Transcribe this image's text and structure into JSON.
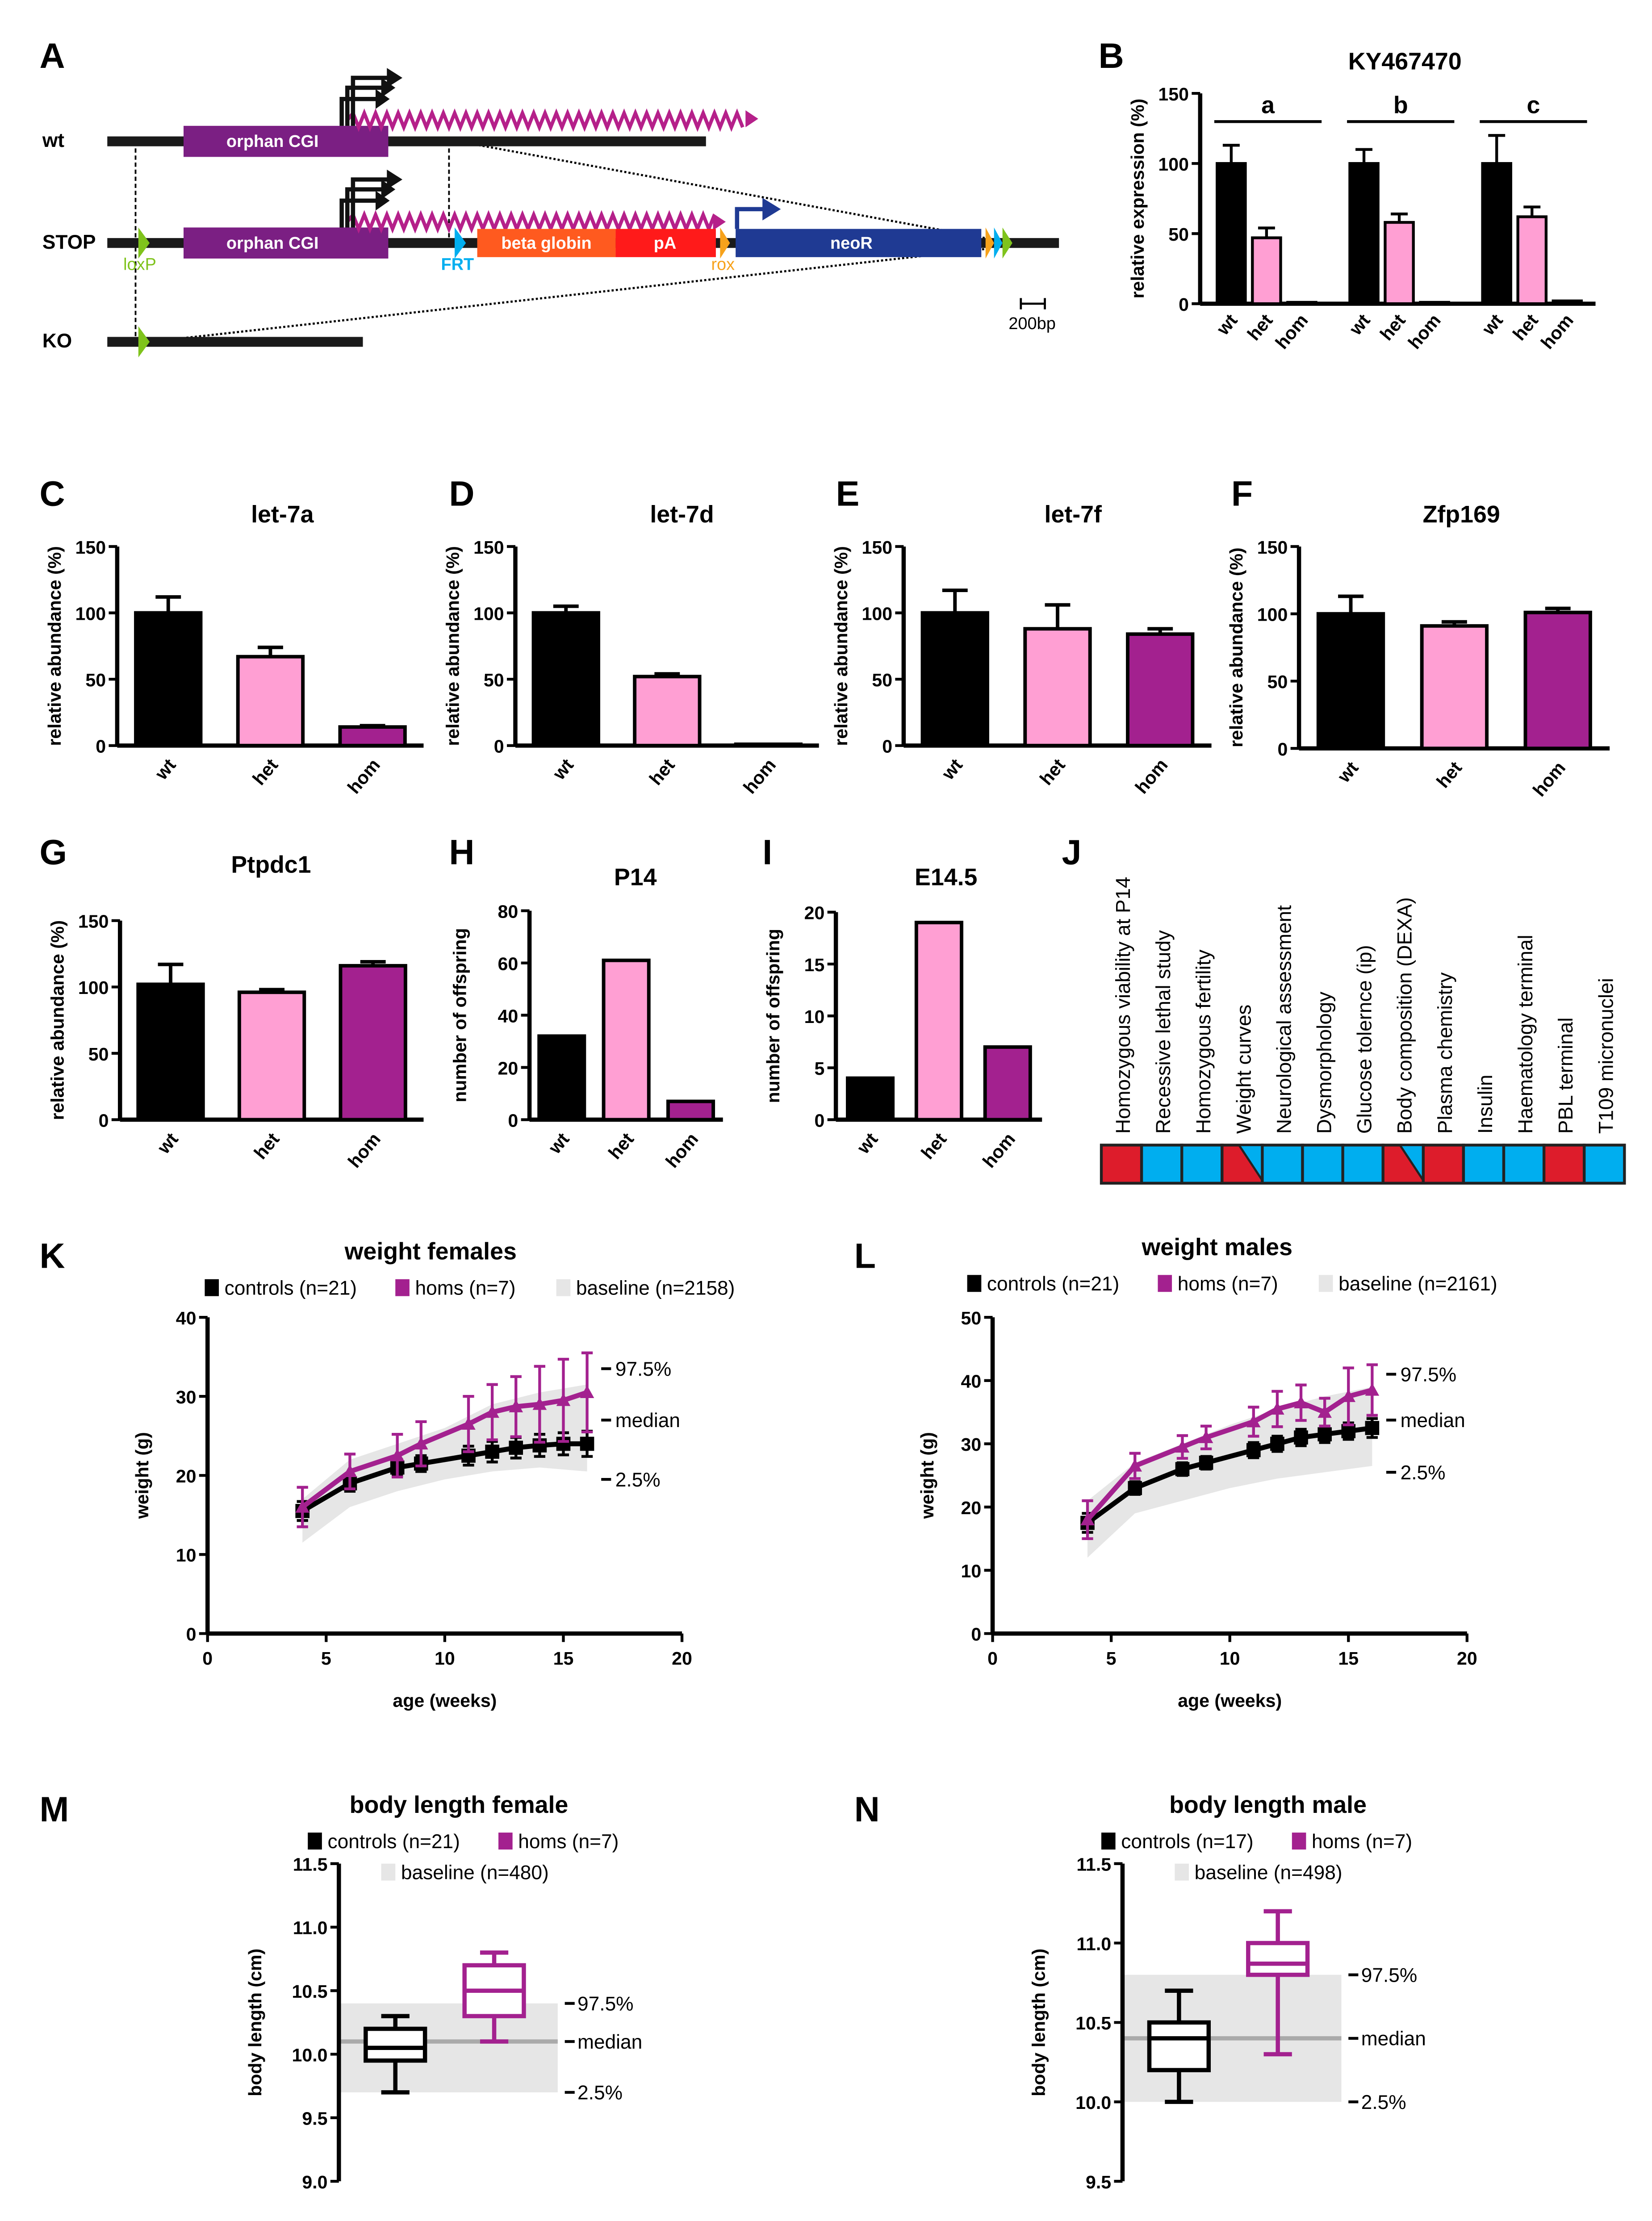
{
  "panel_a": {
    "panel": "A",
    "rows": {
      "wt": "wt",
      "stop": "STOP",
      "ko": "KO"
    },
    "elements": {
      "cgi": "orphan CGI",
      "beta_globin": "beta globin",
      "pa": "pA",
      "neor": "neoR",
      "loxp": "loxP",
      "frt": "FRT",
      "rox": "rox"
    },
    "scale": "200bp",
    "colors": {
      "cgi": "#7b1f83",
      "beta_globin": "#ff5a1f",
      "pa": "#ff1a1a",
      "neor": "#1f3a93",
      "loxp": "#7fc31c",
      "frt": "#00aeef",
      "rox": "#f7a21b",
      "transcript": "#b5208a"
    }
  },
  "colors": {
    "wt": "#000000",
    "het": "#ff9fd3",
    "hom": "#a3218f",
    "baseline": "#e6e6e6",
    "sig": "#dd1c2b",
    "nonsig": "#00aeef"
  },
  "chart_data": [
    {
      "panel": "B",
      "type": "bar",
      "title": "KY467470",
      "ylabel": "relative expression (%)",
      "ylim": [
        0,
        150
      ],
      "yticks": [
        "0",
        "50",
        "100",
        "150"
      ],
      "categories": [
        "wt",
        "het",
        "hom"
      ],
      "groups": [
        {
          "name": "a",
          "values": [
            100,
            47,
            1
          ],
          "errors": [
            13,
            7,
            0
          ]
        },
        {
          "name": "b",
          "values": [
            100,
            58,
            1
          ],
          "errors": [
            10,
            6,
            0
          ]
        },
        {
          "name": "c",
          "values": [
            100,
            62,
            2
          ],
          "errors": [
            20,
            7,
            0
          ]
        }
      ]
    },
    {
      "panel": "C",
      "type": "bar",
      "title": "let-7a",
      "ylabel": "relative abundance (%)",
      "ylim": [
        0,
        150
      ],
      "yticks": [
        "0",
        "50",
        "100",
        "150"
      ],
      "categories": [
        "wt",
        "het",
        "hom"
      ],
      "values": [
        100,
        67,
        14
      ],
      "errors": [
        12,
        7,
        1
      ]
    },
    {
      "panel": "D",
      "type": "bar",
      "title": "let-7d",
      "ylabel": "relative abundance (%)",
      "ylim": [
        0,
        150
      ],
      "yticks": [
        "0",
        "50",
        "100",
        "150"
      ],
      "categories": [
        "wt",
        "het",
        "hom"
      ],
      "values": [
        100,
        52,
        1
      ],
      "errors": [
        5,
        2,
        0
      ]
    },
    {
      "panel": "E",
      "type": "bar",
      "title": "let-7f",
      "ylabel": "relative abundance (%)",
      "ylim": [
        0,
        150
      ],
      "yticks": [
        "0",
        "50",
        "100",
        "150"
      ],
      "categories": [
        "wt",
        "het",
        "hom"
      ],
      "values": [
        100,
        88,
        84
      ],
      "errors": [
        17,
        18,
        4
      ]
    },
    {
      "panel": "F",
      "type": "bar",
      "title": "Zfp169",
      "ylabel": "relative abundance (%)",
      "ylim": [
        0,
        150
      ],
      "yticks": [
        "0",
        "50",
        "100",
        "150"
      ],
      "categories": [
        "wt",
        "het",
        "hom"
      ],
      "values": [
        100,
        91,
        101
      ],
      "errors": [
        13,
        3,
        3
      ]
    },
    {
      "panel": "G",
      "type": "bar",
      "title": "Ptpdc1",
      "ylabel": "relative abundance (%)",
      "ylim": [
        0,
        150
      ],
      "yticks": [
        "0",
        "50",
        "100",
        "150"
      ],
      "categories": [
        "wt",
        "het",
        "hom"
      ],
      "values": [
        102,
        96,
        116
      ],
      "errors": [
        15,
        2,
        3
      ]
    },
    {
      "panel": "H",
      "type": "bar",
      "title": "P14",
      "ylabel": "number of offspring",
      "ylim": [
        0,
        80
      ],
      "yticks": [
        "0",
        "20",
        "40",
        "60",
        "80"
      ],
      "categories": [
        "wt",
        "het",
        "hom"
      ],
      "values": [
        32,
        61,
        7
      ],
      "errors": [
        0,
        0,
        0
      ]
    },
    {
      "panel": "I",
      "type": "bar",
      "title": "E14.5",
      "ylabel": "number of offspring",
      "ylim": [
        0,
        20
      ],
      "yticks": [
        "0",
        "5",
        "10",
        "15",
        "20"
      ],
      "categories": [
        "wt",
        "het",
        "hom"
      ],
      "values": [
        4,
        19,
        7
      ],
      "errors": [
        0,
        0,
        0
      ]
    },
    {
      "panel": "J",
      "type": "table",
      "tests": [
        {
          "name": "Homozygous viability at P14",
          "status": "sig"
        },
        {
          "name": "Recessive lethal study",
          "status": "nonsig"
        },
        {
          "name": "Homozygous fertility",
          "status": "nonsig"
        },
        {
          "name": "Weight curves",
          "status": "split"
        },
        {
          "name": "Neurological assessment",
          "status": "nonsig"
        },
        {
          "name": "Dysmorphology",
          "status": "nonsig"
        },
        {
          "name": "Glucose tolernce (ip)",
          "status": "nonsig"
        },
        {
          "name": "Body composition (DEXA)",
          "status": "split"
        },
        {
          "name": "Plasma chemistry",
          "status": "sig"
        },
        {
          "name": "Insulin",
          "status": "nonsig"
        },
        {
          "name": "Haematology terminal",
          "status": "nonsig"
        },
        {
          "name": "PBL terminal",
          "status": "sig"
        },
        {
          "name": "T109 micronuclei",
          "status": "nonsig"
        }
      ]
    },
    {
      "panel": "K",
      "type": "line",
      "title": "weight females",
      "xlabel": "age (weeks)",
      "ylabel": "weight (g)",
      "xlim": [
        0,
        20
      ],
      "ylim": [
        0,
        40
      ],
      "xticks": [
        "0",
        "5",
        "10",
        "15",
        "20"
      ],
      "yticks": [
        "0",
        "10",
        "20",
        "30",
        "40"
      ],
      "x": [
        4,
        6,
        8,
        9,
        11,
        12,
        13,
        14,
        15,
        16
      ],
      "series": [
        {
          "name": "controls (n=21)",
          "color": "#000000",
          "values": [
            15.5,
            19,
            21,
            21.5,
            22.5,
            23,
            23.5,
            23.8,
            24,
            24
          ],
          "errors": [
            1.2,
            1,
            1,
            1,
            1.2,
            1.3,
            1.3,
            1.4,
            1.4,
            1.6
          ]
        },
        {
          "name": "homs (n=7)",
          "color": "#a3218f",
          "values": [
            16,
            20.5,
            22.5,
            24,
            26.5,
            28,
            28.7,
            29,
            29.5,
            30.5
          ],
          "errors": [
            2.5,
            2.2,
            2.7,
            2.8,
            3.5,
            3.5,
            3.8,
            4.8,
            5.2,
            5
          ]
        }
      ],
      "baseline": {
        "name": "baseline (n=2158)",
        "x": [
          4,
          6,
          8,
          10,
          12,
          14,
          16
        ],
        "upper": [
          17,
          22,
          24,
          26,
          29,
          30.5,
          31.5
        ],
        "lower": [
          11.5,
          16,
          18,
          19.5,
          20.5,
          21,
          20.5
        ]
      },
      "percentile_labels": [
        "97.5%",
        "median",
        "2.5%"
      ]
    },
    {
      "panel": "L",
      "type": "line",
      "title": "weight males",
      "xlabel": "age (weeks)",
      "ylabel": "weight (g)",
      "xlim": [
        0,
        20
      ],
      "ylim": [
        0,
        50
      ],
      "xticks": [
        "0",
        "5",
        "10",
        "15",
        "20"
      ],
      "yticks": [
        "0",
        "10",
        "20",
        "30",
        "40",
        "50"
      ],
      "x": [
        4,
        6,
        8,
        9,
        11,
        12,
        13,
        14,
        15,
        16
      ],
      "series": [
        {
          "name": "controls (n=21)",
          "color": "#000000",
          "values": [
            17.5,
            23,
            26,
            27,
            29,
            30,
            31,
            31.5,
            32,
            32.5
          ],
          "errors": [
            1.5,
            1,
            1,
            1,
            1.2,
            1.2,
            1.3,
            1.3,
            1.3,
            1.5
          ]
        },
        {
          "name": "homs (n=7)",
          "color": "#a3218f",
          "values": [
            18,
            26.5,
            29.5,
            31,
            33.5,
            35.5,
            36.5,
            35,
            37.5,
            38.5
          ],
          "errors": [
            3,
            2,
            1.8,
            1.8,
            2.3,
            2.8,
            2.8,
            2.2,
            4.5,
            4
          ]
        }
      ],
      "baseline": {
        "name": "baseline (n=2161)",
        "x": [
          4,
          6,
          8,
          10,
          12,
          14,
          16
        ],
        "upper": [
          21,
          27,
          30,
          33,
          35.5,
          37.5,
          39
        ],
        "lower": [
          12,
          19,
          21,
          23,
          24.5,
          25.5,
          26.5
        ]
      },
      "percentile_labels": [
        "97.5%",
        "median",
        "2.5%"
      ]
    },
    {
      "panel": "M",
      "type": "box",
      "title": "body length female",
      "ylabel": "body length (cm)",
      "ylim": [
        9.0,
        11.5
      ],
      "yticks": [
        "9.0",
        "9.5",
        "10.0",
        "10.5",
        "11.0",
        "11.5"
      ],
      "boxes": [
        {
          "name": "controls (n=21)",
          "color": "#000000",
          "min": 9.7,
          "q1": 9.95,
          "median": 10.05,
          "q3": 10.2,
          "max": 10.3
        },
        {
          "name": "homs (n=7)",
          "color": "#a3218f",
          "min": 10.1,
          "q1": 10.3,
          "median": 10.5,
          "q3": 10.7,
          "max": 10.8
        }
      ],
      "baseline": {
        "name": "baseline (n=480)",
        "lower": 9.7,
        "median": 10.1,
        "upper": 10.4
      },
      "percentile_labels": [
        "97.5%",
        "median",
        "2.5%"
      ]
    },
    {
      "panel": "N",
      "type": "box",
      "title": "body length male",
      "ylabel": "body length (cm)",
      "ylim": [
        9.5,
        11.5
      ],
      "yticks": [
        "9.5",
        "10.0",
        "10.5",
        "11.0",
        "11.5"
      ],
      "boxes": [
        {
          "name": "controls (n=17)",
          "color": "#000000",
          "min": 10.0,
          "q1": 10.2,
          "median": 10.4,
          "q3": 10.5,
          "max": 10.7
        },
        {
          "name": "homs (n=7)",
          "color": "#a3218f",
          "min": 10.3,
          "q1": 10.8,
          "median": 10.87,
          "q3": 11.0,
          "max": 11.2
        }
      ],
      "baseline": {
        "name": "baseline (n=498)",
        "lower": 10.0,
        "median": 10.4,
        "upper": 10.8
      },
      "percentile_labels": [
        "97.5%",
        "median",
        "2.5%"
      ]
    }
  ]
}
